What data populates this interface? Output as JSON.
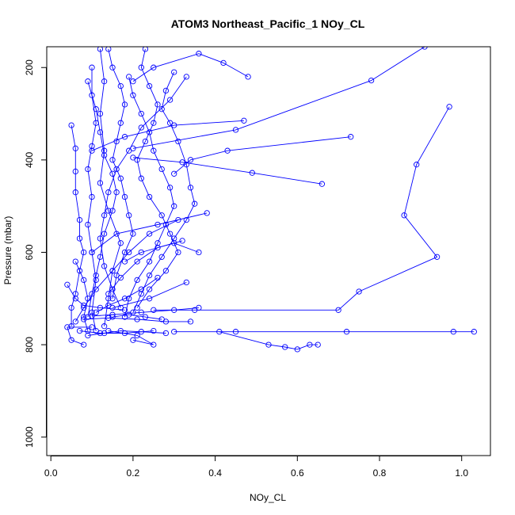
{
  "chart_data": {
    "type": "line",
    "title": "ATOM3 Northeast_Pacific_1 NOy_CL",
    "xlabel": "NOy_CL",
    "ylabel": "Pressure (mbar)",
    "xlim": [
      -0.01,
      1.07
    ],
    "ylim_reversed": [
      1040,
      155
    ],
    "x_ticks": [
      0.0,
      0.2,
      0.4,
      0.6,
      0.8,
      1.0
    ],
    "x_tick_labels": [
      "0.0",
      "0.2",
      "0.4",
      "0.6",
      "0.8",
      "1.0"
    ],
    "y_ticks": [
      200,
      400,
      600,
      800,
      1000
    ],
    "y_tick_labels": [
      "200",
      "400",
      "600",
      "800",
      "1000"
    ],
    "grid": false,
    "series_color": "#0000ff",
    "marker": "open-circle",
    "series": [
      {
        "points": [
          [
            0.97,
            285
          ],
          [
            0.89,
            410
          ],
          [
            0.86,
            520
          ],
          [
            0.94,
            610
          ],
          [
            0.75,
            685
          ],
          [
            0.7,
            725
          ],
          [
            0.35,
            725
          ],
          [
            0.25,
            725
          ]
        ]
      },
      {
        "points": [
          [
            0.91,
            155
          ],
          [
            0.78,
            228
          ],
          [
            0.45,
            335
          ],
          [
            0.2,
            375
          ]
        ]
      },
      {
        "points": [
          [
            0.98,
            772
          ],
          [
            1.03,
            772
          ],
          [
            0.72,
            772
          ],
          [
            0.45,
            772
          ],
          [
            0.3,
            772
          ]
        ]
      },
      {
        "points": [
          [
            0.41,
            772
          ],
          [
            0.53,
            800
          ],
          [
            0.57,
            805
          ],
          [
            0.6,
            810
          ],
          [
            0.63,
            800
          ],
          [
            0.65,
            800
          ]
        ]
      },
      {
        "points": [
          [
            0.66,
            452
          ],
          [
            0.49,
            428
          ],
          [
            0.32,
            405
          ],
          [
            0.2,
            395
          ]
        ]
      },
      {
        "points": [
          [
            0.73,
            350
          ],
          [
            0.43,
            380
          ],
          [
            0.34,
            400
          ],
          [
            0.3,
            430
          ]
        ]
      },
      {
        "points": [
          [
            0.48,
            220
          ],
          [
            0.42,
            190
          ],
          [
            0.36,
            170
          ],
          [
            0.25,
            200
          ],
          [
            0.2,
            230
          ]
        ]
      },
      {
        "points": [
          [
            0.47,
            315
          ],
          [
            0.3,
            325
          ],
          [
            0.18,
            350
          ],
          [
            0.1,
            380
          ]
        ]
      },
      {
        "points": [
          [
            0.38,
            515
          ],
          [
            0.26,
            540
          ],
          [
            0.16,
            560
          ],
          [
            0.1,
            600
          ]
        ]
      },
      {
        "points": [
          [
            0.36,
            600
          ],
          [
            0.3,
            580
          ],
          [
            0.22,
            600
          ],
          [
            0.18,
            620
          ]
        ]
      },
      {
        "points": [
          [
            0.33,
            665
          ],
          [
            0.24,
            700
          ],
          [
            0.15,
            720
          ]
        ]
      },
      {
        "points": [
          [
            0.1,
            762
          ],
          [
            0.04,
            762
          ],
          [
            0.05,
            790
          ],
          [
            0.08,
            800
          ]
        ]
      },
      {
        "points": [
          [
            0.14,
            770
          ],
          [
            0.21,
            780
          ],
          [
            0.25,
            800
          ],
          [
            0.2,
            790
          ]
        ]
      },
      {
        "points": [
          [
            0.12,
            160
          ],
          [
            0.13,
            230
          ],
          [
            0.12,
            300
          ],
          [
            0.13,
            380
          ],
          [
            0.12,
            450
          ],
          [
            0.14,
            510
          ],
          [
            0.17,
            580
          ],
          [
            0.15,
            640
          ],
          [
            0.14,
            700
          ],
          [
            0.13,
            760
          ]
        ]
      },
      {
        "points": [
          [
            0.1,
            200
          ],
          [
            0.1,
            260
          ],
          [
            0.11,
            320
          ],
          [
            0.1,
            370
          ],
          [
            0.09,
            420
          ],
          [
            0.1,
            480
          ],
          [
            0.09,
            540
          ],
          [
            0.1,
            600
          ],
          [
            0.11,
            660
          ],
          [
            0.1,
            730
          ],
          [
            0.11,
            770
          ]
        ]
      },
      {
        "points": [
          [
            0.05,
            325
          ],
          [
            0.06,
            375
          ],
          [
            0.06,
            425
          ],
          [
            0.06,
            470
          ],
          [
            0.07,
            530
          ],
          [
            0.07,
            570
          ],
          [
            0.08,
            600
          ],
          [
            0.07,
            640
          ],
          [
            0.06,
            690
          ],
          [
            0.05,
            720
          ],
          [
            0.05,
            760
          ]
        ]
      },
      {
        "points": [
          [
            0.14,
            160
          ],
          [
            0.15,
            200
          ],
          [
            0.17,
            240
          ],
          [
            0.18,
            280
          ],
          [
            0.17,
            320
          ],
          [
            0.16,
            360
          ],
          [
            0.15,
            400
          ],
          [
            0.17,
            440
          ],
          [
            0.18,
            480
          ],
          [
            0.19,
            520
          ],
          [
            0.2,
            560
          ],
          [
            0.18,
            600
          ],
          [
            0.16,
            650
          ],
          [
            0.15,
            700
          ]
        ]
      },
      {
        "points": [
          [
            0.19,
            220
          ],
          [
            0.2,
            260
          ],
          [
            0.22,
            300
          ],
          [
            0.24,
            340
          ],
          [
            0.25,
            380
          ],
          [
            0.27,
            420
          ],
          [
            0.29,
            460
          ],
          [
            0.3,
            500
          ],
          [
            0.28,
            540
          ],
          [
            0.26,
            580
          ],
          [
            0.24,
            620
          ],
          [
            0.21,
            660
          ],
          [
            0.19,
            700
          ],
          [
            0.18,
            740
          ]
        ]
      },
      {
        "points": [
          [
            0.23,
            160
          ],
          [
            0.22,
            200
          ],
          [
            0.24,
            240
          ],
          [
            0.26,
            280
          ],
          [
            0.25,
            320
          ],
          [
            0.23,
            360
          ],
          [
            0.21,
            400
          ],
          [
            0.22,
            440
          ],
          [
            0.24,
            480
          ],
          [
            0.27,
            520
          ],
          [
            0.29,
            560
          ],
          [
            0.31,
            600
          ],
          [
            0.28,
            640
          ],
          [
            0.24,
            680
          ],
          [
            0.21,
            720
          ]
        ]
      },
      {
        "points": [
          [
            0.09,
            230
          ],
          [
            0.11,
            290
          ],
          [
            0.12,
            340
          ],
          [
            0.13,
            390
          ],
          [
            0.15,
            430
          ],
          [
            0.16,
            470
          ],
          [
            0.15,
            510
          ],
          [
            0.13,
            560
          ],
          [
            0.12,
            610
          ],
          [
            0.11,
            650
          ],
          [
            0.1,
            690
          ],
          [
            0.09,
            740
          ]
        ]
      },
      {
        "points": [
          [
            0.3,
            210
          ],
          [
            0.28,
            250
          ],
          [
            0.27,
            290
          ],
          [
            0.29,
            320
          ],
          [
            0.31,
            360
          ],
          [
            0.33,
            410
          ],
          [
            0.34,
            460
          ],
          [
            0.35,
            495
          ],
          [
            0.33,
            530
          ],
          [
            0.3,
            570
          ],
          [
            0.27,
            610
          ],
          [
            0.24,
            650
          ],
          [
            0.22,
            690
          ],
          [
            0.2,
            730
          ]
        ]
      },
      {
        "points": [
          [
            0.33,
            220
          ],
          [
            0.29,
            270
          ],
          [
            0.22,
            330
          ],
          [
            0.19,
            380
          ],
          [
            0.16,
            420
          ],
          [
            0.14,
            470
          ],
          [
            0.13,
            520
          ],
          [
            0.12,
            570
          ],
          [
            0.13,
            630
          ],
          [
            0.15,
            680
          ],
          [
            0.17,
            720
          ]
        ]
      },
      {
        "points": [
          [
            0.06,
            620
          ],
          [
            0.08,
            660
          ],
          [
            0.09,
            700
          ],
          [
            0.08,
            740
          ],
          [
            0.09,
            770
          ]
        ]
      },
      {
        "points": [
          [
            0.31,
            530
          ],
          [
            0.24,
            560
          ],
          [
            0.19,
            600
          ],
          [
            0.15,
            640
          ],
          [
            0.11,
            680
          ],
          [
            0.08,
            720
          ],
          [
            0.06,
            750
          ]
        ]
      },
      {
        "points": [
          [
            0.25,
            770
          ],
          [
            0.18,
            775
          ],
          [
            0.12,
            775
          ],
          [
            0.07,
            770
          ]
        ]
      },
      {
        "points": [
          [
            0.36,
            720
          ],
          [
            0.3,
            725
          ],
          [
            0.22,
            730
          ],
          [
            0.15,
            735
          ],
          [
            0.1,
            738
          ]
        ]
      },
      {
        "points": [
          [
            0.34,
            750
          ],
          [
            0.28,
            750
          ],
          [
            0.21,
            745
          ],
          [
            0.14,
            742
          ],
          [
            0.08,
            745
          ]
        ]
      },
      {
        "points": [
          [
            0.15,
            740
          ],
          [
            0.19,
            735
          ],
          [
            0.23,
            740
          ],
          [
            0.27,
            745
          ]
        ]
      },
      {
        "points": [
          [
            0.26,
            655
          ],
          [
            0.22,
            680
          ],
          [
            0.18,
            700
          ],
          [
            0.14,
            715
          ],
          [
            0.11,
            730
          ]
        ]
      },
      {
        "points": [
          [
            0.32,
            575
          ],
          [
            0.26,
            590
          ],
          [
            0.21,
            620
          ],
          [
            0.17,
            655
          ],
          [
            0.14,
            690
          ]
        ]
      },
      {
        "points": [
          [
            0.04,
            670
          ],
          [
            0.06,
            700
          ],
          [
            0.08,
            715
          ],
          [
            0.12,
            720
          ],
          [
            0.18,
            725
          ]
        ]
      },
      {
        "points": [
          [
            0.09,
            780
          ],
          [
            0.13,
            775
          ],
          [
            0.17,
            770
          ],
          [
            0.22,
            772
          ],
          [
            0.28,
            775
          ]
        ]
      }
    ]
  }
}
